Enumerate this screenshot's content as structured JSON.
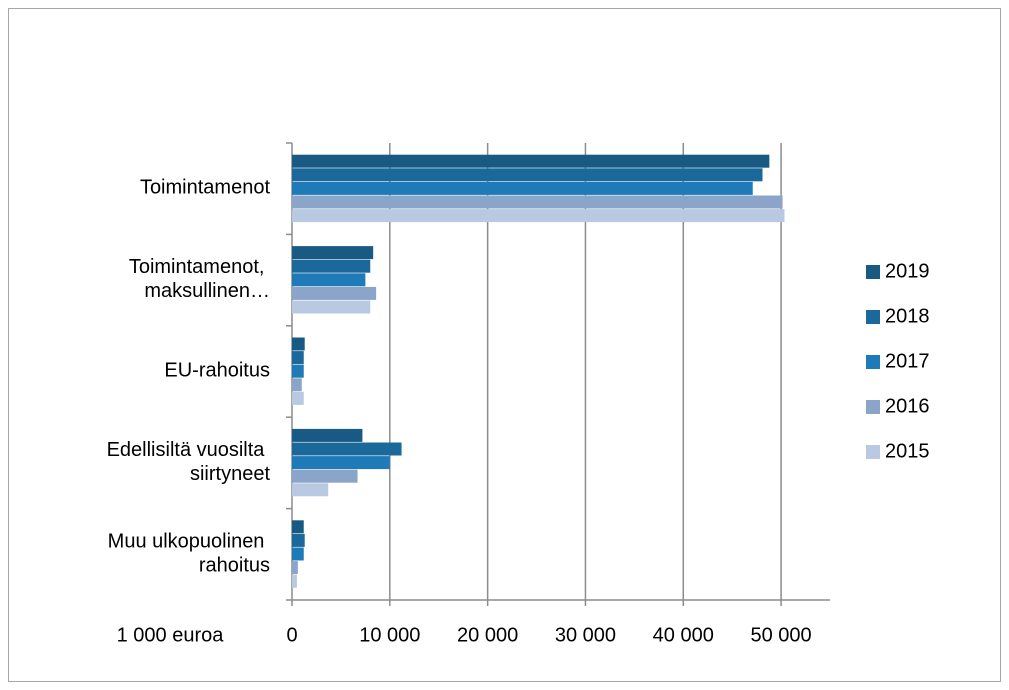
{
  "chart_data": {
    "type": "bar",
    "orientation": "horizontal",
    "x_label": "1 000 euroa",
    "categories": [
      "Toimintamenot",
      "Toimintamenot, maksullinen…",
      "EU-rahoitus",
      "Edellisiltä vuosilta siirtyneet",
      "Muu ulkopuolinen rahoitus"
    ],
    "series": [
      {
        "name": "2019",
        "color": "#195a85",
        "values": [
          48800,
          8300,
          1300,
          7200,
          1200
        ]
      },
      {
        "name": "2018",
        "color": "#1b689b",
        "values": [
          48100,
          8000,
          1200,
          11200,
          1300
        ]
      },
      {
        "name": "2017",
        "color": "#1f7ab8",
        "values": [
          47100,
          7500,
          1200,
          10000,
          1200
        ]
      },
      {
        "name": "2016",
        "color": "#8aa5c9",
        "values": [
          50150,
          8600,
          1000,
          6700,
          600
        ]
      },
      {
        "name": "2015",
        "color": "#b9c9e1",
        "values": [
          50350,
          8000,
          1200,
          3700,
          500
        ]
      }
    ],
    "xlim": [
      0,
      55000
    ],
    "xticks": [
      0,
      {
        "value": 10000,
        "label": "10 000"
      },
      {
        "value": 20000,
        "label": "20 000"
      },
      {
        "value": 30000,
        "label": "30 000"
      },
      {
        "value": 40000,
        "label": "40 000"
      },
      {
        "value": 50000,
        "label": "50 000"
      }
    ],
    "grid": true,
    "legend": "right"
  }
}
